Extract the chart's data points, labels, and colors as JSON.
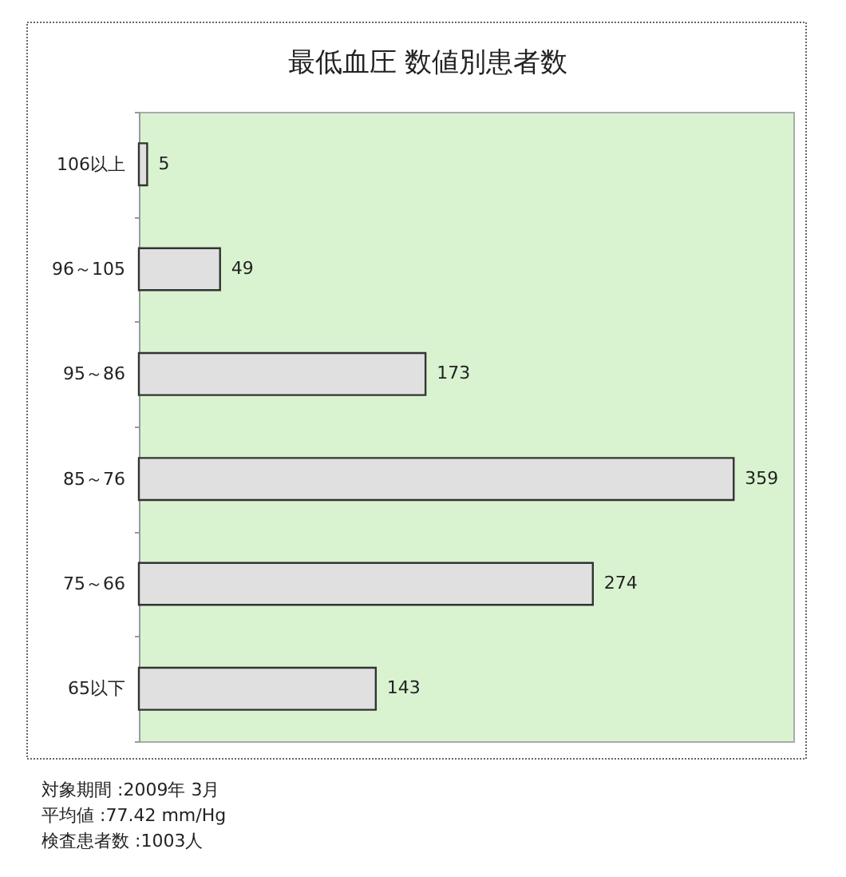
{
  "chart_data": {
    "type": "bar",
    "title": "最低血圧 数値別患者数",
    "orientation": "horizontal",
    "categories": [
      "106以上",
      "96～105",
      "95～86",
      "85～76",
      "75～66",
      "65以下"
    ],
    "values": [
      5,
      49,
      173,
      359,
      274,
      143
    ],
    "color": "#e0e0e0",
    "xlim": [
      0,
      395
    ],
    "data_labels": true,
    "tick_labels": "y",
    "annotations": [
      "対象期間 :2009年 3月",
      "平均値 :77.42 mm/Hg",
      "検査患者数 :1003人"
    ]
  }
}
